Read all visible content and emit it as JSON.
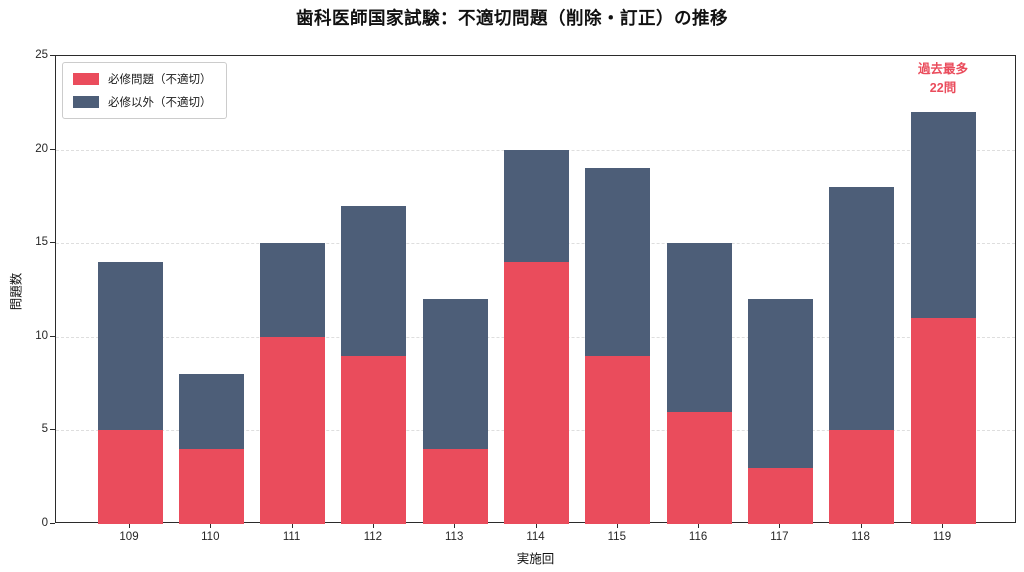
{
  "chart_data": {
    "type": "bar",
    "stacked": true,
    "title": "歯科医師国家試験：不適切問題（削除・訂正）の推移",
    "xlabel": "実施回",
    "ylabel": "問題数",
    "categories": [
      "109",
      "110",
      "111",
      "112",
      "113",
      "114",
      "115",
      "116",
      "117",
      "118",
      "119"
    ],
    "series": [
      {
        "name": "必修問題（不適切）",
        "color": "#ea4c5c",
        "values": [
          5,
          4,
          10,
          9,
          4,
          14,
          9,
          6,
          3,
          5,
          11
        ]
      },
      {
        "name": "必修以外（不適切）",
        "color": "#4d5e78",
        "values": [
          9,
          4,
          5,
          8,
          8,
          6,
          10,
          9,
          9,
          13,
          11
        ]
      }
    ],
    "totals": [
      14,
      8,
      15,
      17,
      12,
      20,
      19,
      15,
      12,
      18,
      22
    ],
    "ylim": [
      0,
      25
    ],
    "yticks": [
      0,
      5,
      10,
      15,
      20,
      25
    ],
    "grid": true,
    "grid_style": "dashed-horizontal",
    "legend_position": "upper-left",
    "annotation": {
      "line1": "過去最多",
      "line2": "22問",
      "color": "#ea4c5c",
      "category": "119"
    },
    "colors": {
      "background": "#ffffff",
      "spine": "#2b2b2b",
      "grid": "#dedede"
    }
  }
}
